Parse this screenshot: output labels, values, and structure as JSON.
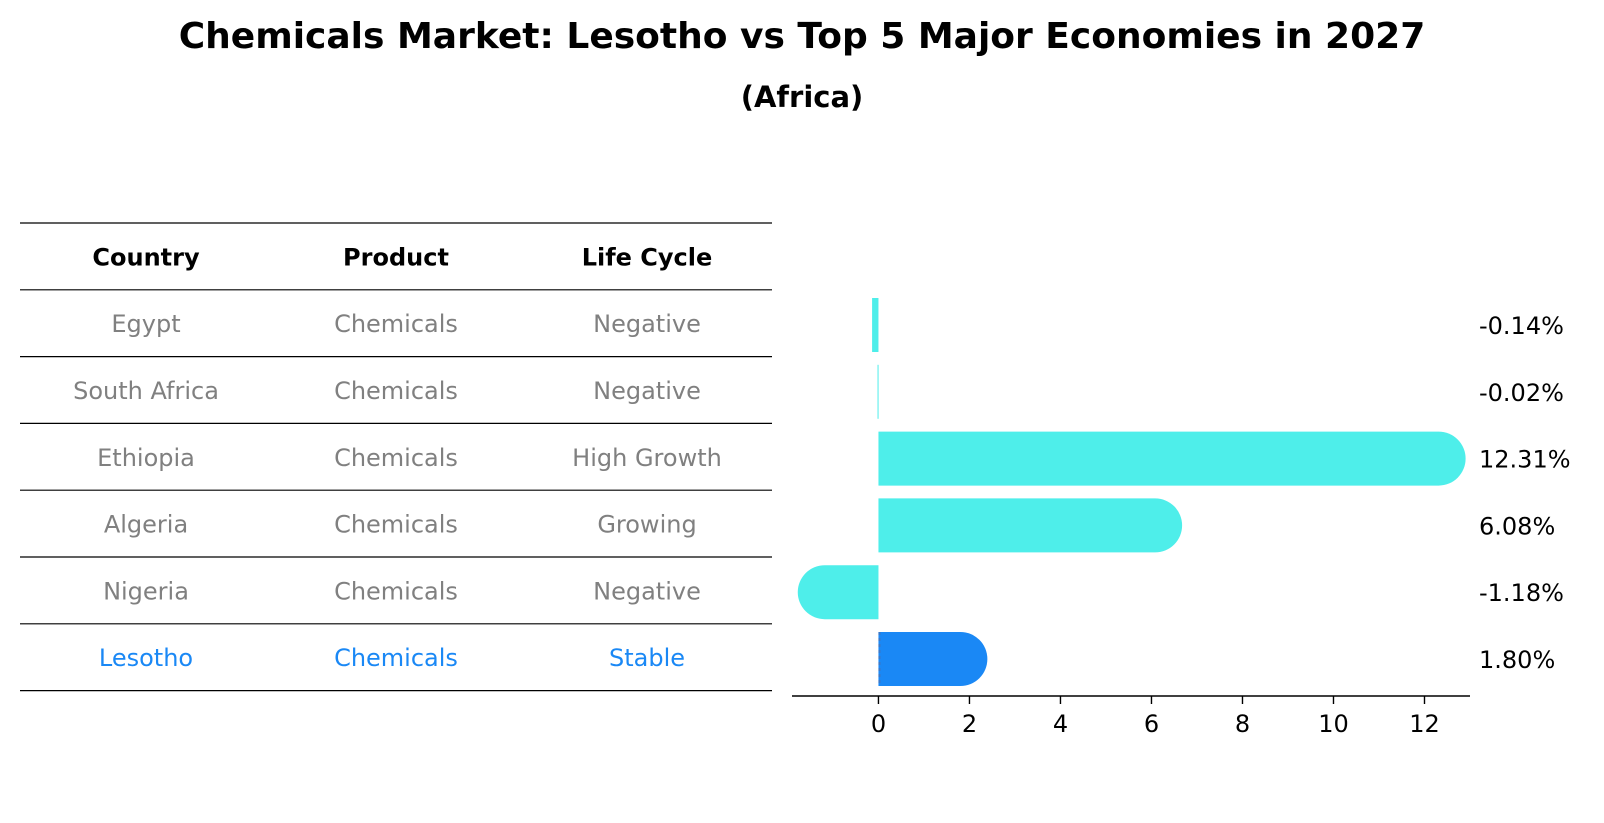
{
  "title": "Chemicals Market: Lesotho vs Top 5 Major Economies in 2027",
  "subtitle": "(Africa)",
  "colors": {
    "bar": "#4EEEEA",
    "highlight": "#1A88F5",
    "muted": "#808080",
    "text": "#000000"
  },
  "table": {
    "headers": [
      "Country",
      "Product",
      "Life Cycle"
    ],
    "rows": [
      {
        "country": "Egypt",
        "product": "Chemicals",
        "life_cycle": "Negative",
        "highlight": false
      },
      {
        "country": "South Africa",
        "product": "Chemicals",
        "life_cycle": "Negative",
        "highlight": false
      },
      {
        "country": "Ethiopia",
        "product": "Chemicals",
        "life_cycle": "High Growth",
        "highlight": false
      },
      {
        "country": "Algeria",
        "product": "Chemicals",
        "life_cycle": "Growing",
        "highlight": false
      },
      {
        "country": "Nigeria",
        "product": "Chemicals",
        "life_cycle": "Negative",
        "highlight": false
      },
      {
        "country": "Lesotho",
        "product": "Chemicals",
        "life_cycle": "Stable",
        "highlight": true
      }
    ]
  },
  "chart_data": {
    "type": "bar",
    "orientation": "horizontal",
    "categories": [
      "Egypt",
      "South Africa",
      "Ethiopia",
      "Algeria",
      "Nigeria",
      "Lesotho"
    ],
    "values": [
      -0.14,
      -0.02,
      12.31,
      6.08,
      -1.18,
      1.8
    ],
    "value_labels": [
      "-0.14%",
      "-0.02%",
      "12.31%",
      "6.08%",
      "-1.18%",
      "1.80%"
    ],
    "highlight_category": "Lesotho",
    "xlim": [
      -1.9,
      13
    ],
    "xticks": [
      0,
      2,
      4,
      6,
      8,
      10,
      12
    ],
    "xlabel": "",
    "ylabel": "",
    "title": "Chemicals Market: Lesotho vs Top 5 Major Economies in 2027",
    "grid": false,
    "legend": "none"
  }
}
